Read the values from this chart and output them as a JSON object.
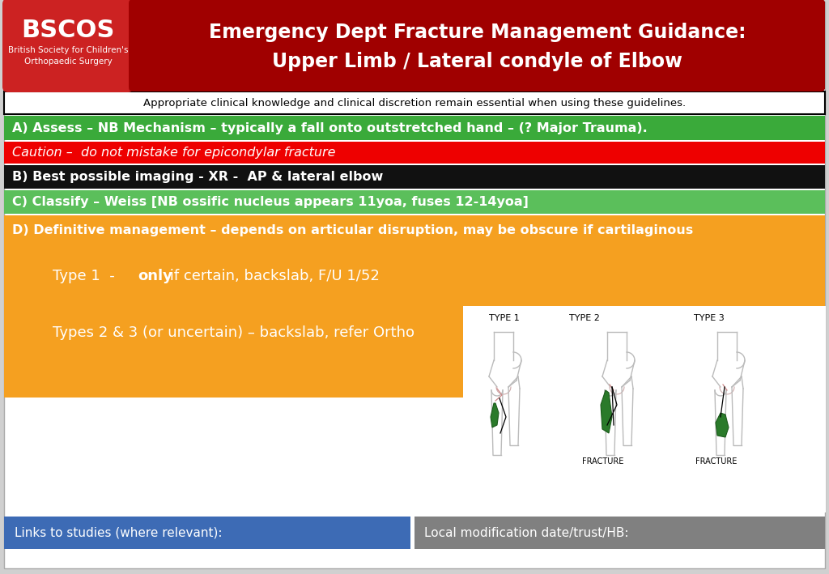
{
  "title_line1": "Emergency Dept Fracture Management Guidance:",
  "title_line2": "Upper Limb / Lateral condyle of Elbow",
  "bscos_line1": "BSCOS",
  "bscos_line2": "British Society for Children's",
  "bscos_line3": "Orthopaedic Surgery",
  "disclaimer": "Appropriate clinical knowledge and clinical discretion remain essential when using these guidelines.",
  "row_A_text": "A) Assess – NB Mechanism – typically a fall onto outstretched hand – (? Major Trauma).",
  "row_caution_text": "Caution –  do not mistake for epicondylar fracture",
  "row_B_text": "B) Best possible imaging - XR -  AP & lateral elbow",
  "row_C_text": "C) Classify – Weiss [NB ossific nucleus appears 11yoa, fuses 12-14yoa]",
  "row_D_text": "D) Definitive management – depends on articular disruption, may be obscure if cartilaginous",
  "type1_normal": "Type 1  - ",
  "type1_bold": "only",
  "type1_rest": " if certain, backslab, F/U 1/52",
  "type23_text": "Types 2 & 3 (or uncertain) – backslab, refer Ortho",
  "footer_left": "Links to studies (where relevant):",
  "footer_right": "Local modification date/trust/HB:",
  "header_dark_red": "#8B0000",
  "bscos_red": "#CC2222",
  "title_red": "#A00000",
  "green_A": "#3AAA3A",
  "green_C": "#5BBF5B",
  "row_red": "#EE0000",
  "row_black": "#111111",
  "row_orange": "#F5A020",
  "white": "#FFFFFF",
  "blue_footer": "#3D6BB5",
  "gray_footer": "#808080",
  "outer_bg": "#D0D0D0",
  "slide_bg": "#FFFFFF"
}
